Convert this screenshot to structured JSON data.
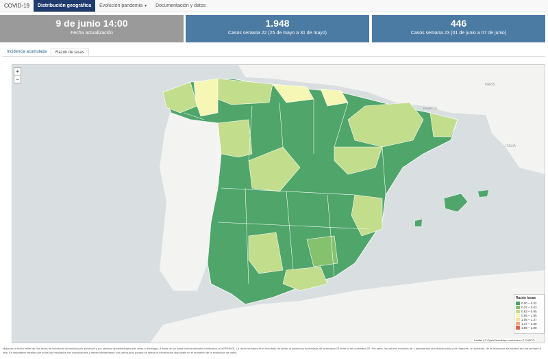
{
  "nav": {
    "brand": "COVID-19",
    "items": [
      {
        "label": "Distribución geográfica",
        "active": true
      },
      {
        "label": "Evolución pandemia",
        "dropdown": true
      },
      {
        "label": "Documentación y datos"
      }
    ]
  },
  "boxes": [
    {
      "value": "9 de junio 14:00",
      "label": "Fecha actualización"
    },
    {
      "value": "1.948",
      "label": "Casos semana 22 (25 de mayo a 31 de mayo)"
    },
    {
      "value": "446",
      "label": "Casos semana 23 (01 de junio a 07 de junio)"
    }
  ],
  "tabs": [
    {
      "label": "Incidencia acumulada",
      "active": false
    },
    {
      "label": "Razón de tasas",
      "active": true
    }
  ],
  "zoom": {
    "in": "+",
    "out": "−"
  },
  "legend": {
    "title": "Razón tasas",
    "items": [
      {
        "label": "0.00 – 0.32",
        "color": "#4fa56a"
      },
      {
        "label": "0.32 – 0.63",
        "color": "#86c26e"
      },
      {
        "label": "0.63 – 0.95",
        "color": "#c2dd8c"
      },
      {
        "label": "0.95 – 1.05",
        "color": "#f7f7b5"
      },
      {
        "label": "1.05 – 1.37",
        "color": "#fbe29b"
      },
      {
        "label": "1.37 – 1.68",
        "color": "#f4a582"
      },
      {
        "label": "1.68 – 2.00",
        "color": "#d6604d"
      }
    ]
  },
  "map_labels": {
    "paris_like": "PARIS",
    "north": "FRANCE",
    "east": "ITALIA"
  },
  "attribution": "Leaflet | © OpenStreetMap contributors © CARTO",
  "footnote": "Mapa de la razón entre las dos tasas de incidencia acumulada por provincia y por semana epidemiológica (de lunes a domingo), a partir de los datos individualizados notificados a la RENAVE. La razón de tasas es el resultado de dividir la incidencia acumulada de la semana 23 entre la de la semana 22. Por tanto, los valores menores de 1 representan una disminución y los mayores, un aumento, de la incidencia acumulada de una semana a otra. Es importante resaltar que todos los resultados son provisionales y deben interpretarse con precaución porque se ofrece la información disponible en el momento de la extracción de datos."
}
